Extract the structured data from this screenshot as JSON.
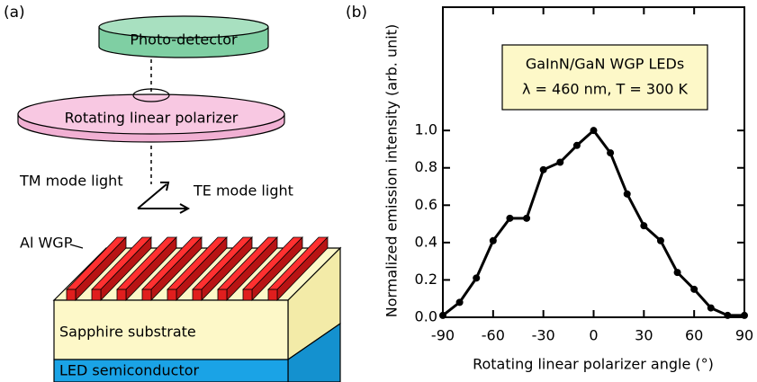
{
  "diagram": {
    "panel_label": "(a)",
    "photo_detector": "Photo-detector",
    "polarizer": "Rotating linear polarizer",
    "tm_light": "TM mode light",
    "te_light": "TE mode light",
    "al_wgp": "Al WGP",
    "substrate": "Sapphire substrate",
    "led": "LED semiconductor"
  },
  "chart_data": {
    "type": "line",
    "panel_label": "(b)",
    "annotation": [
      "GaInN/GaN WGP LEDs",
      "λ = 460 nm, T = 300 K"
    ],
    "xlabel": "Rotating linear polarizer angle (°)",
    "ylabel": "Normalized emission intensity (arb. unit)",
    "x": [
      -90,
      -80,
      -70,
      -60,
      -50,
      -40,
      -30,
      -20,
      -10,
      0,
      10,
      20,
      30,
      40,
      50,
      60,
      70,
      80,
      90
    ],
    "series": [
      {
        "name": "GaInN/GaN WGP LEDs",
        "color": "#000000",
        "values": [
          0.01,
          0.08,
          0.21,
          0.41,
          0.53,
          0.53,
          0.79,
          0.83,
          0.92,
          1.0,
          0.88,
          0.66,
          0.49,
          0.41,
          0.24,
          0.15,
          0.05,
          0.01,
          0.01
        ]
      }
    ],
    "xlim": [
      -90,
      90
    ],
    "xticks": [
      -90,
      -60,
      -30,
      0,
      30,
      60,
      90
    ],
    "ylim": [
      0,
      1.66
    ],
    "yticks": [
      {
        "value": 0,
        "label": "0.0"
      },
      {
        "value": 0.2,
        "label": "0.2"
      },
      {
        "value": 0.4,
        "label": "0.4"
      },
      {
        "value": 0.6,
        "label": "0.6"
      },
      {
        "value": 0.8,
        "label": "0.8"
      },
      {
        "value": 1.0,
        "label": "1.0"
      }
    ],
    "grid": false
  }
}
